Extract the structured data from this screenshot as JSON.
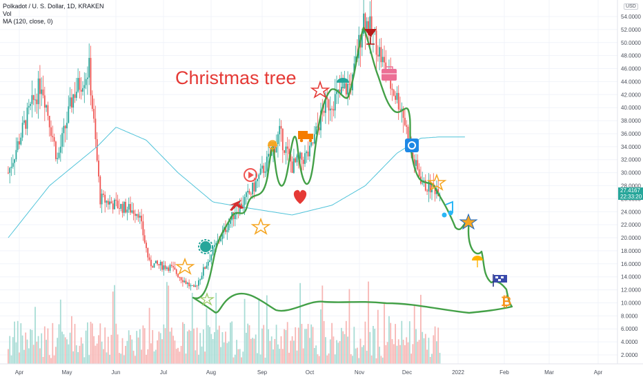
{
  "header": {
    "symbol": "Polkadot / U. S. Dollar, 1D, KRAKEN",
    "vol": "Vol",
    "ma": "MA (120, close, 0)"
  },
  "annotation_text": "Christmas tree",
  "currency_label": "USD",
  "current_price": "27.4167",
  "countdown": "22:33:20",
  "colors": {
    "up": "#26a69a",
    "down": "#ef5350",
    "ma": "#4fc3d9",
    "drawing": "#43a047",
    "annotation": "#e53935"
  },
  "icons": [
    "star-icon",
    "gear-badge-icon",
    "play-button-icon",
    "plane-icon",
    "truck-icon",
    "heart-icon",
    "umbrella-icon",
    "cocktail-icon",
    "briefcase-icon",
    "camera-icon",
    "music-note-icon",
    "flag-icon",
    "bitcoin-icon"
  ],
  "chart_data": {
    "type": "candlestick",
    "yaxis_ticks": [
      "54.0000",
      "52.0000",
      "50.0000",
      "48.0000",
      "46.0000",
      "44.0000",
      "42.0000",
      "40.0000",
      "38.0000",
      "36.0000",
      "34.0000",
      "32.0000",
      "30.0000",
      "28.0000",
      "26.0000",
      "24.0000",
      "22.0000",
      "20.0000",
      "18.0000",
      "16.0000",
      "14.0000",
      "12.0000",
      "10.0000",
      "8.0000",
      "6.0000",
      "4.0000",
      "2.0000"
    ],
    "xaxis_ticks": [
      "Apr",
      "May",
      "Jun",
      "Jul",
      "Aug",
      "Sep",
      "Oct",
      "Nov",
      "Dec",
      "2022",
      "Feb",
      "Mar",
      "Apr"
    ],
    "ylim": [
      0.5,
      56
    ],
    "price_anchors": [
      [
        "2021-03-25",
        30
      ],
      [
        "2021-04-05",
        38
      ],
      [
        "2021-04-15",
        44
      ],
      [
        "2021-04-25",
        32
      ],
      [
        "2021-05-05",
        42
      ],
      [
        "2021-05-15",
        46
      ],
      [
        "2021-05-22",
        26
      ],
      [
        "2021-06-01",
        25
      ],
      [
        "2021-06-15",
        24
      ],
      [
        "2021-06-22",
        16
      ],
      [
        "2021-07-05",
        15.5
      ],
      [
        "2021-07-20",
        12
      ],
      [
        "2021-08-01",
        18
      ],
      [
        "2021-08-15",
        24
      ],
      [
        "2021-08-25",
        27
      ],
      [
        "2021-09-05",
        32
      ],
      [
        "2021-09-12",
        36
      ],
      [
        "2021-09-20",
        31
      ],
      [
        "2021-10-01",
        33
      ],
      [
        "2021-10-10",
        40
      ],
      [
        "2021-10-20",
        42
      ],
      [
        "2021-10-28",
        44
      ],
      [
        "2021-11-04",
        54
      ],
      [
        "2021-11-12",
        50
      ],
      [
        "2021-11-20",
        44
      ],
      [
        "2021-11-28",
        40
      ],
      [
        "2021-12-05",
        32
      ],
      [
        "2021-12-12",
        28
      ],
      [
        "2021-12-22",
        27.4
      ]
    ],
    "ma_anchors": [
      [
        "2021-03-25",
        20
      ],
      [
        "2021-04-20",
        28
      ],
      [
        "2021-05-20",
        34
      ],
      [
        "2021-06-01",
        37
      ],
      [
        "2021-06-20",
        35
      ],
      [
        "2021-07-10",
        30
      ],
      [
        "2021-08-01",
        25.5
      ],
      [
        "2021-08-25",
        24.5
      ],
      [
        "2021-09-20",
        23.5
      ],
      [
        "2021-10-15",
        25
      ],
      [
        "2021-11-05",
        28
      ],
      [
        "2021-11-25",
        33
      ],
      [
        "2021-12-10",
        35.3
      ],
      [
        "2021-12-22",
        35.5
      ],
      [
        "2022-01-07",
        35.5
      ]
    ],
    "volume_note": "Volume histogram along bottom of chart, red and green bars"
  }
}
